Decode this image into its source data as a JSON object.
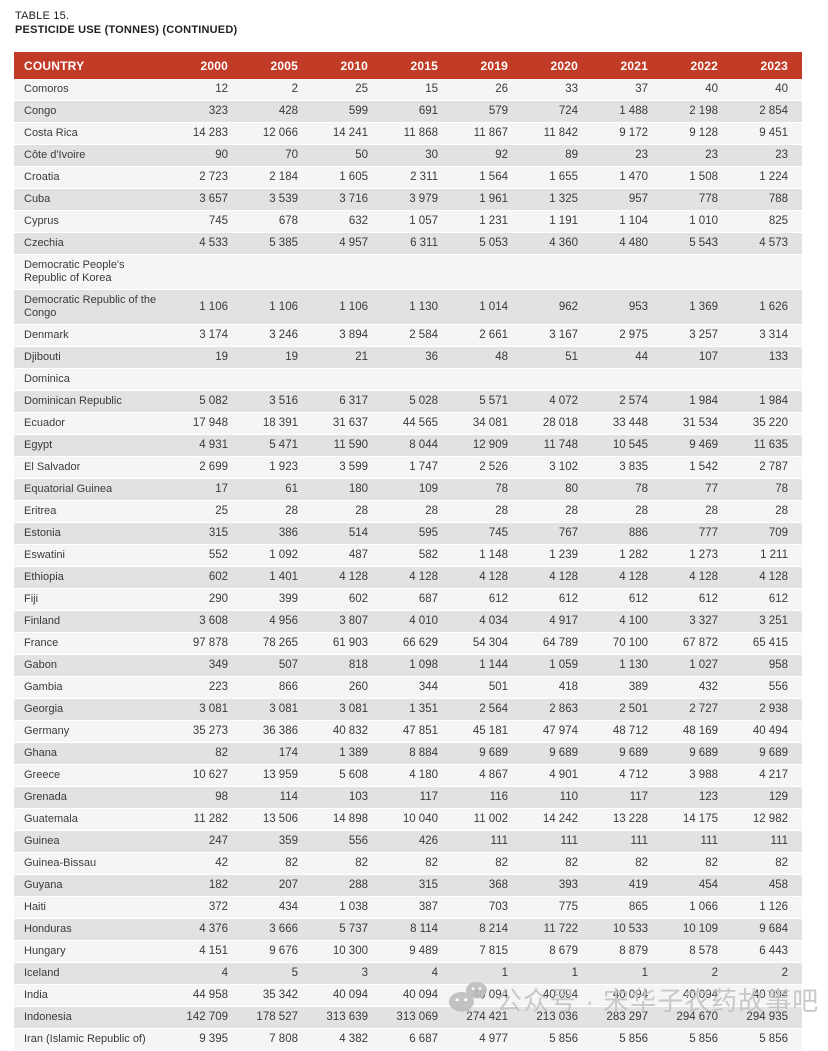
{
  "page": {
    "table_label": "TABLE 15.",
    "table_title": "PESTICIDE USE (TONNES) (CONTINUED)"
  },
  "colors": {
    "header_bg": "#c23b27",
    "header_text": "#ffffff",
    "row_light": "#f5f5f5",
    "row_dark": "#e2e2e2",
    "body_text": "#3a3a3a",
    "watermark_gray": "#c4c4c4"
  },
  "table": {
    "columns": [
      "COUNTRY",
      "2000",
      "2005",
      "2010",
      "2015",
      "2019",
      "2020",
      "2021",
      "2022",
      "2023"
    ],
    "rows": [
      {
        "country": "Comoros",
        "values": [
          "12",
          "2",
          "25",
          "15",
          "26",
          "33",
          "37",
          "40",
          "40"
        ]
      },
      {
        "country": "Congo",
        "values": [
          "323",
          "428",
          "599",
          "691",
          "579",
          "724",
          "1 488",
          "2 198",
          "2 854"
        ]
      },
      {
        "country": "Costa Rica",
        "values": [
          "14 283",
          "12 066",
          "14 241",
          "11 868",
          "11 867",
          "11 842",
          "9 172",
          "9 128",
          "9 451"
        ]
      },
      {
        "country": "Côte d'Ivoire",
        "values": [
          "90",
          "70",
          "50",
          "30",
          "92",
          "89",
          "23",
          "23",
          "23"
        ]
      },
      {
        "country": "Croatia",
        "values": [
          "2 723",
          "2 184",
          "1 605",
          "2 311",
          "1 564",
          "1 655",
          "1 470",
          "1 508",
          "1 224"
        ]
      },
      {
        "country": "Cuba",
        "values": [
          "3 657",
          "3 539",
          "3 716",
          "3 979",
          "1 961",
          "1 325",
          "957",
          "778",
          "788"
        ]
      },
      {
        "country": "Cyprus",
        "values": [
          "745",
          "678",
          "632",
          "1 057",
          "1 231",
          "1 191",
          "1 104",
          "1 010",
          "825"
        ]
      },
      {
        "country": "Czechia",
        "values": [
          "4 533",
          "5 385",
          "4 957",
          "6 311",
          "5 053",
          "4 360",
          "4 480",
          "5 543",
          "4 573"
        ]
      },
      {
        "country": "Democratic People's Republic of Korea",
        "values": [
          "",
          "",
          "",
          "",
          "",
          "",
          "",
          "",
          ""
        ]
      },
      {
        "country": "Democratic Republic of the Congo",
        "values": [
          "1 106",
          "1 106",
          "1 106",
          "1 130",
          "1 014",
          "962",
          "953",
          "1 369",
          "1 626"
        ]
      },
      {
        "country": "Denmark",
        "values": [
          "3 174",
          "3 246",
          "3 894",
          "2 584",
          "2 661",
          "3 167",
          "2 975",
          "3 257",
          "3 314"
        ]
      },
      {
        "country": "Djibouti",
        "values": [
          "19",
          "19",
          "21",
          "36",
          "48",
          "51",
          "44",
          "107",
          "133"
        ]
      },
      {
        "country": "Dominica",
        "values": [
          "",
          "",
          "",
          "",
          "",
          "",
          "",
          "",
          ""
        ]
      },
      {
        "country": "Dominican Republic",
        "values": [
          "5 082",
          "3 516",
          "6 317",
          "5 028",
          "5 571",
          "4 072",
          "2 574",
          "1 984",
          "1 984"
        ]
      },
      {
        "country": "Ecuador",
        "values": [
          "17 948",
          "18 391",
          "31 637",
          "44 565",
          "34 081",
          "28 018",
          "33 448",
          "31 534",
          "35 220"
        ]
      },
      {
        "country": "Egypt",
        "values": [
          "4 931",
          "5 471",
          "11 590",
          "8 044",
          "12 909",
          "11 748",
          "10 545",
          "9 469",
          "11 635"
        ]
      },
      {
        "country": "El Salvador",
        "values": [
          "2 699",
          "1 923",
          "3 599",
          "1 747",
          "2 526",
          "3 102",
          "3 835",
          "1 542",
          "2 787"
        ]
      },
      {
        "country": "Equatorial Guinea",
        "values": [
          "17",
          "61",
          "180",
          "109",
          "78",
          "80",
          "78",
          "77",
          "78"
        ]
      },
      {
        "country": "Eritrea",
        "values": [
          "25",
          "28",
          "28",
          "28",
          "28",
          "28",
          "28",
          "28",
          "28"
        ]
      },
      {
        "country": "Estonia",
        "values": [
          "315",
          "386",
          "514",
          "595",
          "745",
          "767",
          "886",
          "777",
          "709"
        ]
      },
      {
        "country": "Eswatini",
        "values": [
          "552",
          "1 092",
          "487",
          "582",
          "1 148",
          "1 239",
          "1 282",
          "1 273",
          "1 211"
        ]
      },
      {
        "country": "Ethiopia",
        "values": [
          "602",
          "1 401",
          "4 128",
          "4 128",
          "4 128",
          "4 128",
          "4 128",
          "4 128",
          "4 128"
        ]
      },
      {
        "country": "Fiji",
        "values": [
          "290",
          "399",
          "602",
          "687",
          "612",
          "612",
          "612",
          "612",
          "612"
        ]
      },
      {
        "country": "Finland",
        "values": [
          "3 608",
          "4 956",
          "3 807",
          "4 010",
          "4 034",
          "4 917",
          "4 100",
          "3 327",
          "3 251"
        ]
      },
      {
        "country": "France",
        "values": [
          "97 878",
          "78 265",
          "61 903",
          "66 629",
          "54 304",
          "64 789",
          "70 100",
          "67 872",
          "65 415"
        ]
      },
      {
        "country": "Gabon",
        "values": [
          "349",
          "507",
          "818",
          "1 098",
          "1 144",
          "1 059",
          "1 130",
          "1 027",
          "958"
        ]
      },
      {
        "country": "Gambia",
        "values": [
          "223",
          "866",
          "260",
          "344",
          "501",
          "418",
          "389",
          "432",
          "556"
        ]
      },
      {
        "country": "Georgia",
        "values": [
          "3 081",
          "3 081",
          "3 081",
          "1 351",
          "2 564",
          "2 863",
          "2 501",
          "2 727",
          "2 938"
        ]
      },
      {
        "country": "Germany",
        "values": [
          "35 273",
          "36 386",
          "40 832",
          "47 851",
          "45 181",
          "47 974",
          "48 712",
          "48 169",
          "40 494"
        ]
      },
      {
        "country": "Ghana",
        "values": [
          "82",
          "174",
          "1 389",
          "8 884",
          "9 689",
          "9 689",
          "9 689",
          "9 689",
          "9 689"
        ]
      },
      {
        "country": "Greece",
        "values": [
          "10 627",
          "13 959",
          "5 608",
          "4 180",
          "4 867",
          "4 901",
          "4 712",
          "3 988",
          "4 217"
        ]
      },
      {
        "country": "Grenada",
        "values": [
          "98",
          "114",
          "103",
          "117",
          "116",
          "110",
          "117",
          "123",
          "129"
        ]
      },
      {
        "country": "Guatemala",
        "values": [
          "11 282",
          "13 506",
          "14 898",
          "10 040",
          "11 002",
          "14 242",
          "13 228",
          "14 175",
          "12 982"
        ]
      },
      {
        "country": "Guinea",
        "values": [
          "247",
          "359",
          "556",
          "426",
          "111",
          "111",
          "111",
          "111",
          "111"
        ]
      },
      {
        "country": "Guinea-Bissau",
        "values": [
          "42",
          "82",
          "82",
          "82",
          "82",
          "82",
          "82",
          "82",
          "82"
        ]
      },
      {
        "country": "Guyana",
        "values": [
          "182",
          "207",
          "288",
          "315",
          "368",
          "393",
          "419",
          "454",
          "458"
        ]
      },
      {
        "country": "Haiti",
        "values": [
          "372",
          "434",
          "1 038",
          "387",
          "703",
          "775",
          "865",
          "1 066",
          "1 126"
        ]
      },
      {
        "country": "Honduras",
        "values": [
          "4 376",
          "3 666",
          "5 737",
          "8 114",
          "8 214",
          "11 722",
          "10 533",
          "10 109",
          "9 684"
        ]
      },
      {
        "country": "Hungary",
        "values": [
          "4 151",
          "9 676",
          "10 300",
          "9 489",
          "7 815",
          "8 679",
          "8 879",
          "8 578",
          "6 443"
        ]
      },
      {
        "country": "Iceland",
        "values": [
          "4",
          "5",
          "3",
          "4",
          "1",
          "1",
          "1",
          "2",
          "2"
        ]
      },
      {
        "country": "India",
        "values": [
          "44 958",
          "35 342",
          "40 094",
          "40 094",
          "40 094",
          "40 094",
          "40 094",
          "40 094",
          "40 094"
        ]
      },
      {
        "country": "Indonesia",
        "values": [
          "142 709",
          "178 527",
          "313 639",
          "313 069",
          "274 421",
          "213 036",
          "283 297",
          "294 670",
          "294 935"
        ]
      },
      {
        "country": "Iran (Islamic Republic of)",
        "values": [
          "9 395",
          "7 808",
          "4 382",
          "6 687",
          "4 977",
          "5 856",
          "5 856",
          "5 856",
          "5 856"
        ]
      }
    ]
  },
  "watermark": {
    "icon": "wechat-icon",
    "text": "公众号 · 宋华子农药故事吧"
  }
}
